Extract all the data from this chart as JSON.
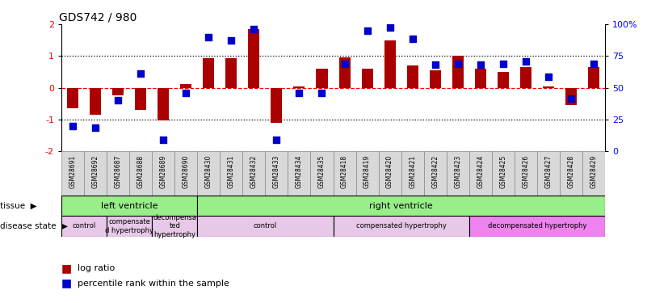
{
  "title": "GDS742 / 980",
  "samples": [
    "GSM28691",
    "GSM28692",
    "GSM28687",
    "GSM28688",
    "GSM28689",
    "GSM28690",
    "GSM28430",
    "GSM28431",
    "GSM28432",
    "GSM28433",
    "GSM28434",
    "GSM28435",
    "GSM28418",
    "GSM28419",
    "GSM28420",
    "GSM28421",
    "GSM28422",
    "GSM28423",
    "GSM28424",
    "GSM28425",
    "GSM28426",
    "GSM28427",
    "GSM28428",
    "GSM28429"
  ],
  "log_ratio": [
    -0.65,
    -0.85,
    -0.25,
    -0.7,
    -1.02,
    0.12,
    0.93,
    0.93,
    1.85,
    -1.1,
    0.04,
    0.6,
    0.95,
    0.6,
    1.5,
    0.7,
    0.55,
    1.0,
    0.6,
    0.5,
    0.65,
    0.05,
    -0.55,
    0.65
  ],
  "percentile_lr": [
    -1.2,
    -1.25,
    -0.4,
    0.45,
    -1.65,
    -0.17,
    1.6,
    1.5,
    1.85,
    -1.65,
    -0.17,
    -0.17,
    0.75,
    1.8,
    1.9,
    1.55,
    0.72,
    0.75,
    0.72,
    0.75,
    0.82,
    0.35,
    -0.35,
    0.75
  ],
  "bar_color": "#AA0000",
  "dot_color": "#0000CC",
  "yticks": [
    -2,
    -1,
    0,
    1,
    2
  ],
  "right_tick_labels": [
    "0",
    "25",
    "50",
    "75",
    "100%"
  ],
  "hline_dotted": [
    -1.0,
    1.0
  ],
  "hline_red": 0.0,
  "tissue_sections": [
    {
      "label": "left ventricle",
      "start": 0,
      "end": 6,
      "color": "#98EE88"
    },
    {
      "label": "right ventricle",
      "start": 6,
      "end": 24,
      "color": "#98EE88"
    }
  ],
  "disease_sections": [
    {
      "label": "control",
      "start": 0,
      "end": 2,
      "color": "#E8C8E8"
    },
    {
      "label": "compensate\nd hypertrophy",
      "start": 2,
      "end": 4,
      "color": "#E8C8E8"
    },
    {
      "label": "decompensa\nted\nhypertrophy",
      "start": 4,
      "end": 6,
      "color": "#E8C8E8"
    },
    {
      "label": "control",
      "start": 6,
      "end": 12,
      "color": "#E8C8E8"
    },
    {
      "label": "compensated hypertrophy",
      "start": 12,
      "end": 18,
      "color": "#E8C8E8"
    },
    {
      "label": "decompensated hypertrophy",
      "start": 18,
      "end": 24,
      "color": "#EE82EE"
    }
  ],
  "label_tissue": "tissue",
  "label_disease": "disease state",
  "legend_bar": "log ratio",
  "legend_dot": "percentile rank within the sample"
}
